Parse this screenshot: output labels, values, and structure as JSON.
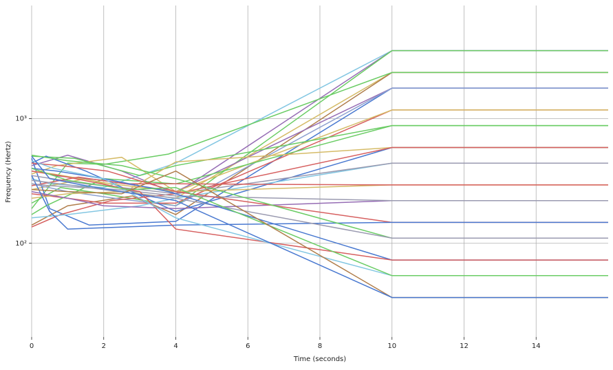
{
  "chart_data": {
    "type": "line",
    "xlabel": "Time (seconds)",
    "ylabel": "Frequency (Hertz)",
    "xlim": [
      0,
      16
    ],
    "xticks": [
      0,
      2,
      4,
      6,
      8,
      10,
      12,
      14
    ],
    "ylim": [
      17.7,
      8100
    ],
    "yticks": [
      {
        "value": 100,
        "label": "10²"
      },
      {
        "value": 1000,
        "label": "10³"
      }
    ],
    "log_y": true,
    "grid": true,
    "series": [
      {
        "color": "#82c6e2",
        "x": [
          0,
          0.5,
          2,
          4,
          10,
          16
        ],
        "values": [
          330,
          300,
          280,
          440,
          3520,
          3520
        ]
      },
      {
        "color": "#956cb4",
        "x": [
          0,
          1,
          2.5,
          4,
          10,
          16
        ],
        "values": [
          420,
          510,
          380,
          250,
          3520,
          3520
        ]
      },
      {
        "color": "#6acc64",
        "x": [
          0,
          0.8,
          2,
          4,
          10,
          16
        ],
        "values": [
          210,
          280,
          250,
          200,
          3520,
          3520
        ]
      },
      {
        "color": "#d5bb67",
        "x": [
          0,
          1.5,
          3,
          4,
          10,
          16
        ],
        "values": [
          270,
          330,
          250,
          230,
          2349,
          2349
        ]
      },
      {
        "color": "#b07d4a",
        "x": [
          0,
          1,
          2.8,
          4,
          10,
          16
        ],
        "values": [
          140,
          200,
          240,
          170,
          2349,
          2349
        ]
      },
      {
        "color": "#6acc64",
        "x": [
          0,
          1,
          2,
          3.8,
          10,
          16
        ],
        "values": [
          190,
          440,
          430,
          520,
          2349,
          2349
        ]
      },
      {
        "color": "#956cb4",
        "x": [
          0,
          0.6,
          2,
          4,
          10,
          16
        ],
        "values": [
          400,
          350,
          320,
          260,
          1760,
          1760
        ]
      },
      {
        "color": "#4878d0",
        "x": [
          0,
          0.5,
          1.6,
          4,
          10,
          16
        ],
        "values": [
          480,
          190,
          140,
          150,
          1760,
          1760
        ]
      },
      {
        "color": "#8c9fcf",
        "x": [
          0,
          1,
          2.3,
          4,
          10,
          16
        ],
        "values": [
          300,
          260,
          230,
          200,
          1760,
          1760
        ]
      },
      {
        "color": "#d65f5f",
        "x": [
          0,
          1,
          2,
          4,
          10,
          16
        ],
        "values": [
          250,
          230,
          210,
          210,
          1175,
          1175
        ]
      },
      {
        "color": "#d5bb67",
        "x": [
          0,
          0.7,
          2.5,
          4,
          10,
          16
        ],
        "values": [
          360,
          420,
          490,
          260,
          1175,
          1175
        ]
      },
      {
        "color": "#6acc64",
        "x": [
          0,
          0.4,
          2,
          4,
          10,
          16
        ],
        "values": [
          170,
          200,
          330,
          300,
          880,
          880
        ]
      },
      {
        "color": "#6acc64",
        "x": [
          0,
          1.2,
          3,
          4,
          10,
          16
        ],
        "values": [
          500,
          480,
          350,
          420,
          880,
          880
        ]
      },
      {
        "color": "#4878d0",
        "x": [
          0,
          0.4,
          1.5,
          4,
          10,
          16
        ],
        "values": [
          440,
          500,
          380,
          180,
          587,
          587
        ]
      },
      {
        "color": "#d5bb67",
        "x": [
          0,
          1,
          2.6,
          4,
          10,
          16
        ],
        "values": [
          230,
          250,
          260,
          450,
          587,
          587
        ]
      },
      {
        "color": "#d65f5f",
        "x": [
          0,
          0.8,
          2.2,
          4,
          10,
          16
        ],
        "values": [
          135,
          170,
          220,
          250,
          587,
          587
        ]
      },
      {
        "color": "#82c6e2",
        "x": [
          0,
          1,
          3,
          4,
          10,
          16
        ],
        "values": [
          160,
          170,
          200,
          230,
          440,
          440
        ]
      },
      {
        "color": "#9a9ab0",
        "x": [
          0,
          1.5,
          3,
          4,
          10,
          16
        ],
        "values": [
          350,
          300,
          270,
          250,
          440,
          440
        ]
      },
      {
        "color": "#d5bb67",
        "x": [
          0,
          0.6,
          2.2,
          4,
          10,
          16
        ],
        "values": [
          380,
          360,
          300,
          260,
          294,
          294
        ]
      },
      {
        "color": "#d65f5f",
        "x": [
          0,
          1.3,
          2.6,
          4,
          10,
          16
        ],
        "values": [
          290,
          340,
          300,
          300,
          294,
          294
        ]
      },
      {
        "color": "#956cb4",
        "x": [
          0,
          1,
          2,
          4,
          10,
          16
        ],
        "values": [
          260,
          230,
          200,
          190,
          220,
          220
        ]
      },
      {
        "color": "#9a9ab0",
        "x": [
          0,
          0.5,
          2.4,
          4,
          10,
          16
        ],
        "values": [
          300,
          290,
          270,
          240,
          220,
          220
        ]
      },
      {
        "color": "#d65f5f",
        "x": [
          0,
          0.8,
          2.1,
          4,
          10,
          16
        ],
        "values": [
          440,
          420,
          380,
          260,
          147,
          147
        ]
      },
      {
        "color": "#4878d0",
        "x": [
          0,
          0.5,
          1,
          4,
          10,
          16
        ],
        "values": [
          350,
          180,
          130,
          140,
          147,
          147
        ]
      },
      {
        "color": "#6acc64",
        "x": [
          0,
          1,
          2.5,
          4,
          10,
          16
        ],
        "values": [
          510,
          460,
          420,
          330,
          110,
          110
        ]
      },
      {
        "color": "#9a9ab0",
        "x": [
          0,
          1.2,
          2.4,
          4,
          10,
          16
        ],
        "values": [
          320,
          290,
          260,
          230,
          110,
          110
        ]
      },
      {
        "color": "#4878d0",
        "x": [
          0,
          0.7,
          2,
          3.8,
          10,
          16
        ],
        "values": [
          400,
          380,
          330,
          260,
          73.4,
          73.4
        ]
      },
      {
        "color": "#d65f5f",
        "x": [
          0,
          1,
          3,
          4,
          10,
          16
        ],
        "values": [
          380,
          340,
          260,
          130,
          73.4,
          73.4
        ]
      },
      {
        "color": "#82c6e2",
        "x": [
          0,
          0.6,
          2,
          4,
          10,
          16
        ],
        "values": [
          460,
          400,
          330,
          160,
          55,
          55
        ]
      },
      {
        "color": "#6acc64",
        "x": [
          0,
          1,
          2.7,
          4,
          10,
          16
        ],
        "values": [
          400,
          320,
          270,
          280,
          55,
          55
        ]
      },
      {
        "color": "#b07d4a",
        "x": [
          0,
          1,
          2.5,
          4,
          10,
          16
        ],
        "values": [
          270,
          260,
          250,
          380,
          36.7,
          36.7
        ]
      },
      {
        "color": "#4878d0",
        "x": [
          0,
          0.5,
          1.5,
          4,
          10,
          16
        ],
        "values": [
          500,
          330,
          290,
          220,
          36.7,
          36.7
        ]
      }
    ]
  }
}
